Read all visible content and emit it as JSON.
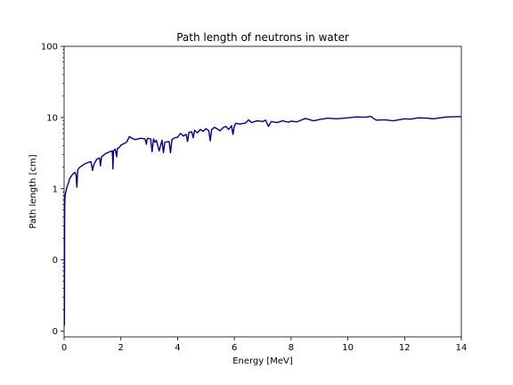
{
  "chart_data": {
    "type": "line",
    "title": "Path length of neutrons in water",
    "xlabel": "Energy [MeV]",
    "ylabel": "Path length [cm]",
    "xlim": [
      0,
      14
    ],
    "x_ticks": [
      0,
      2,
      4,
      6,
      8,
      10,
      12,
      14
    ],
    "y_scale": "log",
    "y_ticks": [
      {
        "value": 0.01,
        "label": "0"
      },
      {
        "value": 0.1,
        "label": "0"
      },
      {
        "value": 1,
        "label": "1"
      },
      {
        "value": 10,
        "label": "10"
      },
      {
        "value": 100,
        "label": "100"
      }
    ],
    "ylim": [
      0.0083,
      100
    ],
    "grid": false,
    "line_color": "#00008b",
    "series": [
      {
        "x": [
          0.01,
          0.02,
          0.03,
          0.04,
          0.06,
          0.1,
          0.15,
          0.2,
          0.3,
          0.38,
          0.42,
          0.45,
          0.48,
          0.55,
          0.7,
          0.85,
          0.95,
          1.0,
          1.05,
          1.15,
          1.25,
          1.28,
          1.32,
          1.45,
          1.6,
          1.7,
          1.72,
          1.74,
          1.8,
          1.85,
          1.88,
          1.95,
          2.0,
          2.2,
          2.3,
          2.4,
          2.5,
          2.7,
          2.85,
          2.9,
          2.92,
          2.95,
          3.05,
          3.1,
          3.15,
          3.2,
          3.25,
          3.35,
          3.45,
          3.5,
          3.55,
          3.7,
          3.75,
          3.8,
          3.9,
          4.0,
          4.1,
          4.2,
          4.3,
          4.35,
          4.4,
          4.5,
          4.55,
          4.6,
          4.7,
          4.8,
          4.9,
          5.0,
          5.1,
          5.15,
          5.2,
          5.3,
          5.4,
          5.5,
          5.6,
          5.7,
          5.8,
          5.9,
          5.95,
          6.0,
          6.05,
          6.2,
          6.4,
          6.5,
          6.6,
          6.8,
          7.0,
          7.1,
          7.2,
          7.3,
          7.5,
          7.7,
          7.9,
          8.0,
          8.2,
          8.5,
          8.8,
          9.0,
          9.3,
          9.6,
          10.0,
          10.3,
          10.6,
          10.8,
          11.0,
          11.3,
          11.6,
          12.0,
          12.2,
          12.5,
          12.8,
          13.0,
          13.5,
          14.0
        ],
        "y": [
          0.012,
          0.55,
          0.75,
          0.82,
          0.9,
          1.05,
          1.2,
          1.4,
          1.6,
          1.7,
          1.55,
          1.05,
          1.85,
          2.0,
          2.2,
          2.35,
          2.4,
          1.8,
          2.2,
          2.6,
          2.7,
          2.1,
          2.8,
          3.1,
          3.3,
          3.4,
          1.9,
          3.4,
          3.6,
          2.8,
          3.7,
          3.8,
          4.1,
          4.5,
          5.4,
          5.1,
          4.9,
          5.1,
          5.0,
          4.2,
          4.9,
          5.1,
          5.0,
          3.3,
          5.0,
          4.5,
          4.8,
          3.4,
          4.8,
          3.2,
          4.5,
          4.6,
          3.2,
          4.9,
          5.2,
          5.3,
          6.0,
          5.5,
          5.8,
          4.6,
          6.2,
          6.3,
          5.2,
          6.6,
          6.1,
          6.8,
          6.4,
          7.0,
          6.5,
          4.7,
          6.8,
          7.3,
          6.9,
          6.5,
          7.2,
          7.5,
          6.8,
          7.7,
          5.8,
          7.6,
          8.3,
          8.1,
          8.4,
          9.3,
          8.5,
          9.0,
          8.8,
          9.2,
          7.5,
          8.8,
          8.5,
          9.0,
          8.6,
          8.9,
          8.7,
          9.7,
          9.0,
          9.4,
          9.8,
          9.6,
          9.9,
          10.2,
          10.1,
          10.4,
          9.2,
          9.3,
          9.0,
          9.6,
          9.5,
          9.9,
          9.8,
          9.6,
          10.2,
          10.3
        ]
      }
    ]
  }
}
